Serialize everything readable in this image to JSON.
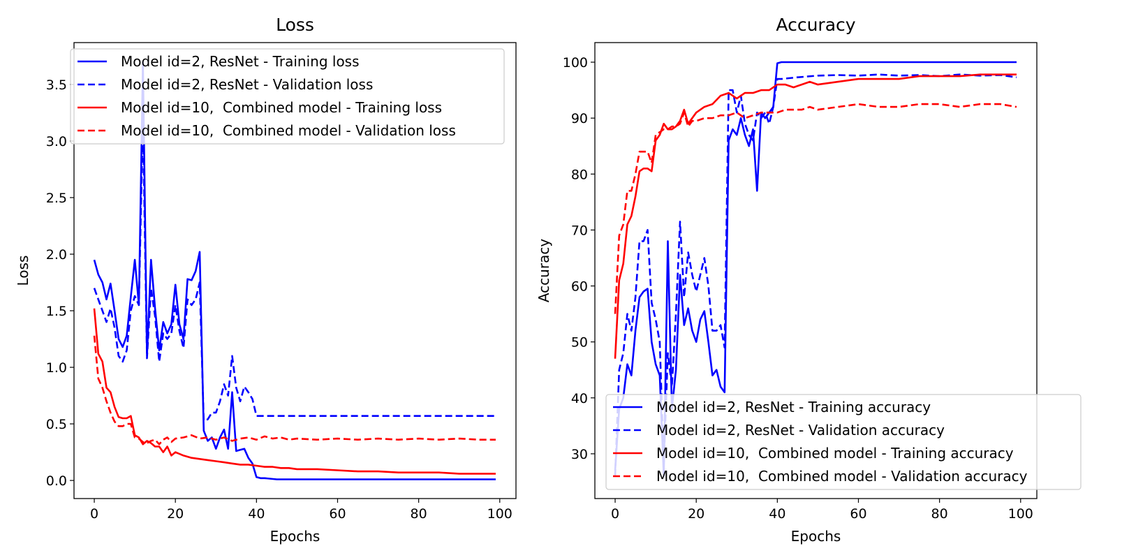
{
  "colors": {
    "blue": "#0000ff",
    "red": "#ff0000",
    "axes": "#000000",
    "legend_border": "#cccccc"
  },
  "chart_data": [
    {
      "type": "line",
      "title": "Loss",
      "xlabel": "Epochs",
      "ylabel": "Loss",
      "xlim": [
        -5,
        104
      ],
      "ylim": [
        -0.16,
        3.87
      ],
      "xticks": [
        0,
        20,
        40,
        60,
        80,
        100
      ],
      "yticks": [
        0.0,
        0.5,
        1.0,
        1.5,
        2.0,
        2.5,
        3.0,
        3.5
      ],
      "xtick_labels": [
        "0",
        "20",
        "40",
        "60",
        "80",
        "100"
      ],
      "ytick_labels": [
        "0.0",
        "0.5",
        "1.0",
        "1.5",
        "2.0",
        "2.5",
        "3.0",
        "3.5"
      ],
      "grid": false,
      "legend_position": "top",
      "series": [
        {
          "name": "Model id=2, ResNet - Training loss",
          "color": "blue",
          "style": "solid",
          "x": [
            0,
            1,
            2,
            3,
            4,
            5,
            6,
            7,
            8,
            9,
            10,
            11,
            12,
            13,
            14,
            15,
            16,
            17,
            18,
            19,
            20,
            21,
            22,
            23,
            24,
            25,
            26,
            27,
            28,
            29,
            30,
            31,
            32,
            33,
            34,
            35,
            36,
            37,
            38,
            39,
            40,
            41,
            42,
            45,
            50,
            60,
            70,
            80,
            90,
            99
          ],
          "y": [
            1.95,
            1.82,
            1.75,
            1.6,
            1.74,
            1.5,
            1.25,
            1.18,
            1.28,
            1.62,
            1.95,
            1.55,
            3.7,
            1.1,
            1.95,
            1.52,
            1.15,
            1.4,
            1.3,
            1.38,
            1.73,
            1.38,
            1.25,
            1.78,
            1.77,
            1.85,
            2.02,
            0.44,
            0.35,
            0.38,
            0.28,
            0.38,
            0.45,
            0.28,
            0.78,
            0.26,
            0.27,
            0.28,
            0.2,
            0.15,
            0.03,
            0.02,
            0.02,
            0.01,
            0.01,
            0.01,
            0.01,
            0.01,
            0.01,
            0.01
          ]
        },
        {
          "name": "Model id=2, ResNet - Validation loss",
          "color": "blue",
          "style": "dashed",
          "x": [
            0,
            1,
            2,
            3,
            4,
            5,
            6,
            7,
            8,
            9,
            10,
            11,
            12,
            13,
            14,
            15,
            16,
            17,
            18,
            19,
            20,
            21,
            22,
            23,
            24,
            25,
            26,
            27,
            28,
            29,
            30,
            31,
            32,
            33,
            34,
            35,
            36,
            37,
            38,
            39,
            40,
            41,
            45,
            50,
            60,
            70,
            80,
            90,
            99
          ],
          "y": [
            1.7,
            1.6,
            1.5,
            1.4,
            1.52,
            1.35,
            1.1,
            1.05,
            1.15,
            1.5,
            1.63,
            1.55,
            3.2,
            1.08,
            1.7,
            1.45,
            1.05,
            1.3,
            1.25,
            1.3,
            1.55,
            1.32,
            1.17,
            1.6,
            1.55,
            1.6,
            1.75,
            0.53,
            0.54,
            0.6,
            0.6,
            0.7,
            0.85,
            0.75,
            1.1,
            0.82,
            0.7,
            0.83,
            0.78,
            0.72,
            0.57,
            0.57,
            0.57,
            0.57,
            0.57,
            0.57,
            0.57,
            0.57,
            0.57
          ]
        },
        {
          "name": "Model id=10,  Combined model - Training loss",
          "color": "red",
          "style": "solid",
          "x": [
            0,
            1,
            2,
            3,
            4,
            5,
            6,
            7,
            8,
            9,
            10,
            11,
            12,
            13,
            14,
            15,
            16,
            17,
            18,
            19,
            20,
            22,
            24,
            26,
            28,
            30,
            32,
            34,
            36,
            38,
            40,
            42,
            44,
            46,
            48,
            50,
            55,
            60,
            65,
            70,
            75,
            80,
            85,
            90,
            95,
            99
          ],
          "y": [
            1.52,
            1.12,
            1.05,
            0.82,
            0.78,
            0.65,
            0.56,
            0.55,
            0.55,
            0.57,
            0.4,
            0.38,
            0.32,
            0.35,
            0.33,
            0.3,
            0.3,
            0.25,
            0.3,
            0.22,
            0.25,
            0.22,
            0.2,
            0.19,
            0.18,
            0.17,
            0.16,
            0.15,
            0.14,
            0.14,
            0.13,
            0.12,
            0.12,
            0.11,
            0.11,
            0.1,
            0.1,
            0.09,
            0.08,
            0.08,
            0.07,
            0.07,
            0.07,
            0.06,
            0.06,
            0.06
          ]
        },
        {
          "name": "Model id=10,  Combined model - Validation loss",
          "color": "red",
          "style": "dashed",
          "x": [
            0,
            1,
            2,
            3,
            4,
            5,
            6,
            7,
            8,
            9,
            10,
            11,
            12,
            13,
            14,
            15,
            16,
            17,
            18,
            19,
            20,
            22,
            24,
            26,
            28,
            30,
            32,
            34,
            36,
            38,
            40,
            42,
            44,
            46,
            48,
            50,
            55,
            60,
            65,
            70,
            75,
            80,
            85,
            90,
            95,
            99
          ],
          "y": [
            1.28,
            0.9,
            0.82,
            0.7,
            0.6,
            0.52,
            0.48,
            0.48,
            0.5,
            0.5,
            0.38,
            0.37,
            0.34,
            0.33,
            0.35,
            0.36,
            0.32,
            0.36,
            0.38,
            0.34,
            0.37,
            0.38,
            0.4,
            0.37,
            0.38,
            0.36,
            0.38,
            0.35,
            0.37,
            0.38,
            0.36,
            0.39,
            0.37,
            0.38,
            0.36,
            0.37,
            0.36,
            0.37,
            0.36,
            0.37,
            0.36,
            0.37,
            0.36,
            0.37,
            0.36,
            0.36
          ]
        }
      ]
    },
    {
      "type": "line",
      "title": "Accuracy",
      "xlabel": "Epochs",
      "ylabel": "Accuracy",
      "xlim": [
        -5,
        104
      ],
      "ylim": [
        22,
        103.5
      ],
      "xticks": [
        0,
        20,
        40,
        60,
        80,
        100
      ],
      "yticks": [
        30,
        40,
        50,
        60,
        70,
        80,
        90,
        100
      ],
      "xtick_labels": [
        "0",
        "20",
        "40",
        "60",
        "80",
        "100"
      ],
      "ytick_labels": [
        "30",
        "40",
        "50",
        "60",
        "70",
        "80",
        "90",
        "100"
      ],
      "grid": false,
      "legend_position": "lower right",
      "series": [
        {
          "name": "Model id=2, ResNet - Training accuracy",
          "color": "blue",
          "style": "solid",
          "x": [
            0,
            1,
            2,
            3,
            4,
            5,
            6,
            7,
            8,
            9,
            10,
            11,
            12,
            13,
            14,
            15,
            16,
            17,
            18,
            19,
            20,
            21,
            22,
            23,
            24,
            25,
            26,
            27,
            28,
            29,
            30,
            31,
            32,
            33,
            34,
            35,
            36,
            37,
            38,
            39,
            40,
            41,
            45,
            50,
            60,
            70,
            80,
            90,
            99
          ],
          "y": [
            27,
            38,
            40,
            46,
            44,
            52,
            58,
            59,
            59.5,
            50,
            46,
            44,
            26,
            68,
            38,
            45,
            62,
            53,
            56,
            52,
            50,
            54,
            55.5,
            50,
            44,
            45,
            42,
            41,
            86,
            88,
            87,
            90,
            87,
            85,
            88,
            77,
            91,
            90,
            91,
            92,
            99.8,
            100,
            100,
            100,
            100,
            100,
            100,
            100,
            100
          ]
        },
        {
          "name": "Model id=2, ResNet - Validation accuracy",
          "color": "blue",
          "style": "dashed",
          "x": [
            0,
            1,
            2,
            3,
            4,
            5,
            6,
            7,
            8,
            9,
            10,
            11,
            12,
            13,
            14,
            15,
            16,
            17,
            18,
            19,
            20,
            21,
            22,
            23,
            24,
            25,
            26,
            27,
            28,
            29,
            30,
            31,
            32,
            33,
            34,
            35,
            36,
            37,
            38,
            39,
            40,
            41,
            45,
            50,
            55,
            60,
            65,
            70,
            75,
            80,
            85,
            90,
            95,
            99
          ],
          "y": [
            26,
            45,
            48,
            55,
            52,
            58,
            68,
            68,
            70,
            57,
            54,
            50,
            28,
            48,
            42,
            55,
            71.5,
            58,
            66,
            62,
            59,
            62,
            65,
            60,
            52,
            52,
            53,
            49,
            95,
            95,
            91,
            94,
            89,
            87,
            86,
            91,
            90,
            91,
            89,
            92,
            97,
            97,
            97.3,
            97.6,
            97.7,
            97.6,
            97.8,
            97.6,
            97.7,
            97.5,
            97.8,
            97.6,
            97.7,
            97.3
          ]
        },
        {
          "name": "Model id=10,  Combined model - Training accuracy",
          "color": "red",
          "style": "solid",
          "x": [
            0,
            1,
            2,
            3,
            4,
            5,
            6,
            7,
            8,
            9,
            10,
            11,
            12,
            13,
            14,
            15,
            16,
            17,
            18,
            19,
            20,
            22,
            24,
            26,
            28,
            30,
            32,
            34,
            36,
            38,
            40,
            42,
            44,
            46,
            48,
            50,
            55,
            60,
            65,
            70,
            75,
            80,
            85,
            90,
            95,
            99
          ],
          "y": [
            47,
            61,
            64,
            71,
            72.5,
            76,
            80.5,
            81,
            81,
            80.5,
            86,
            87,
            89,
            88,
            88,
            88.5,
            89.5,
            91.5,
            89,
            90,
            91,
            92,
            92.5,
            94,
            94.5,
            93.5,
            94.5,
            94.5,
            95,
            95,
            96,
            96,
            95.5,
            96,
            96.5,
            96,
            96.5,
            97,
            97,
            97,
            97.5,
            97.5,
            97.5,
            97.8,
            97.8,
            97.8
          ]
        },
        {
          "name": "Model id=10,  Combined model - Validation accuracy",
          "color": "red",
          "style": "dashed",
          "x": [
            0,
            1,
            2,
            3,
            4,
            5,
            6,
            7,
            8,
            9,
            10,
            11,
            12,
            13,
            14,
            15,
            16,
            17,
            18,
            19,
            20,
            22,
            24,
            26,
            28,
            30,
            32,
            34,
            36,
            38,
            40,
            42,
            44,
            46,
            48,
            50,
            55,
            60,
            65,
            70,
            75,
            80,
            85,
            90,
            95,
            99
          ],
          "y": [
            55,
            69,
            71,
            77,
            77,
            80,
            84,
            84,
            84,
            82,
            87,
            87.5,
            88,
            88,
            88.5,
            88.5,
            89,
            91,
            88.5,
            89.5,
            89.5,
            90,
            90,
            90.5,
            90.5,
            91,
            90,
            90.5,
            91,
            91,
            91,
            91.5,
            91.5,
            91.5,
            92,
            91.5,
            92,
            92.5,
            92,
            92,
            92.5,
            92.5,
            92,
            92.5,
            92.5,
            92
          ]
        }
      ]
    }
  ]
}
